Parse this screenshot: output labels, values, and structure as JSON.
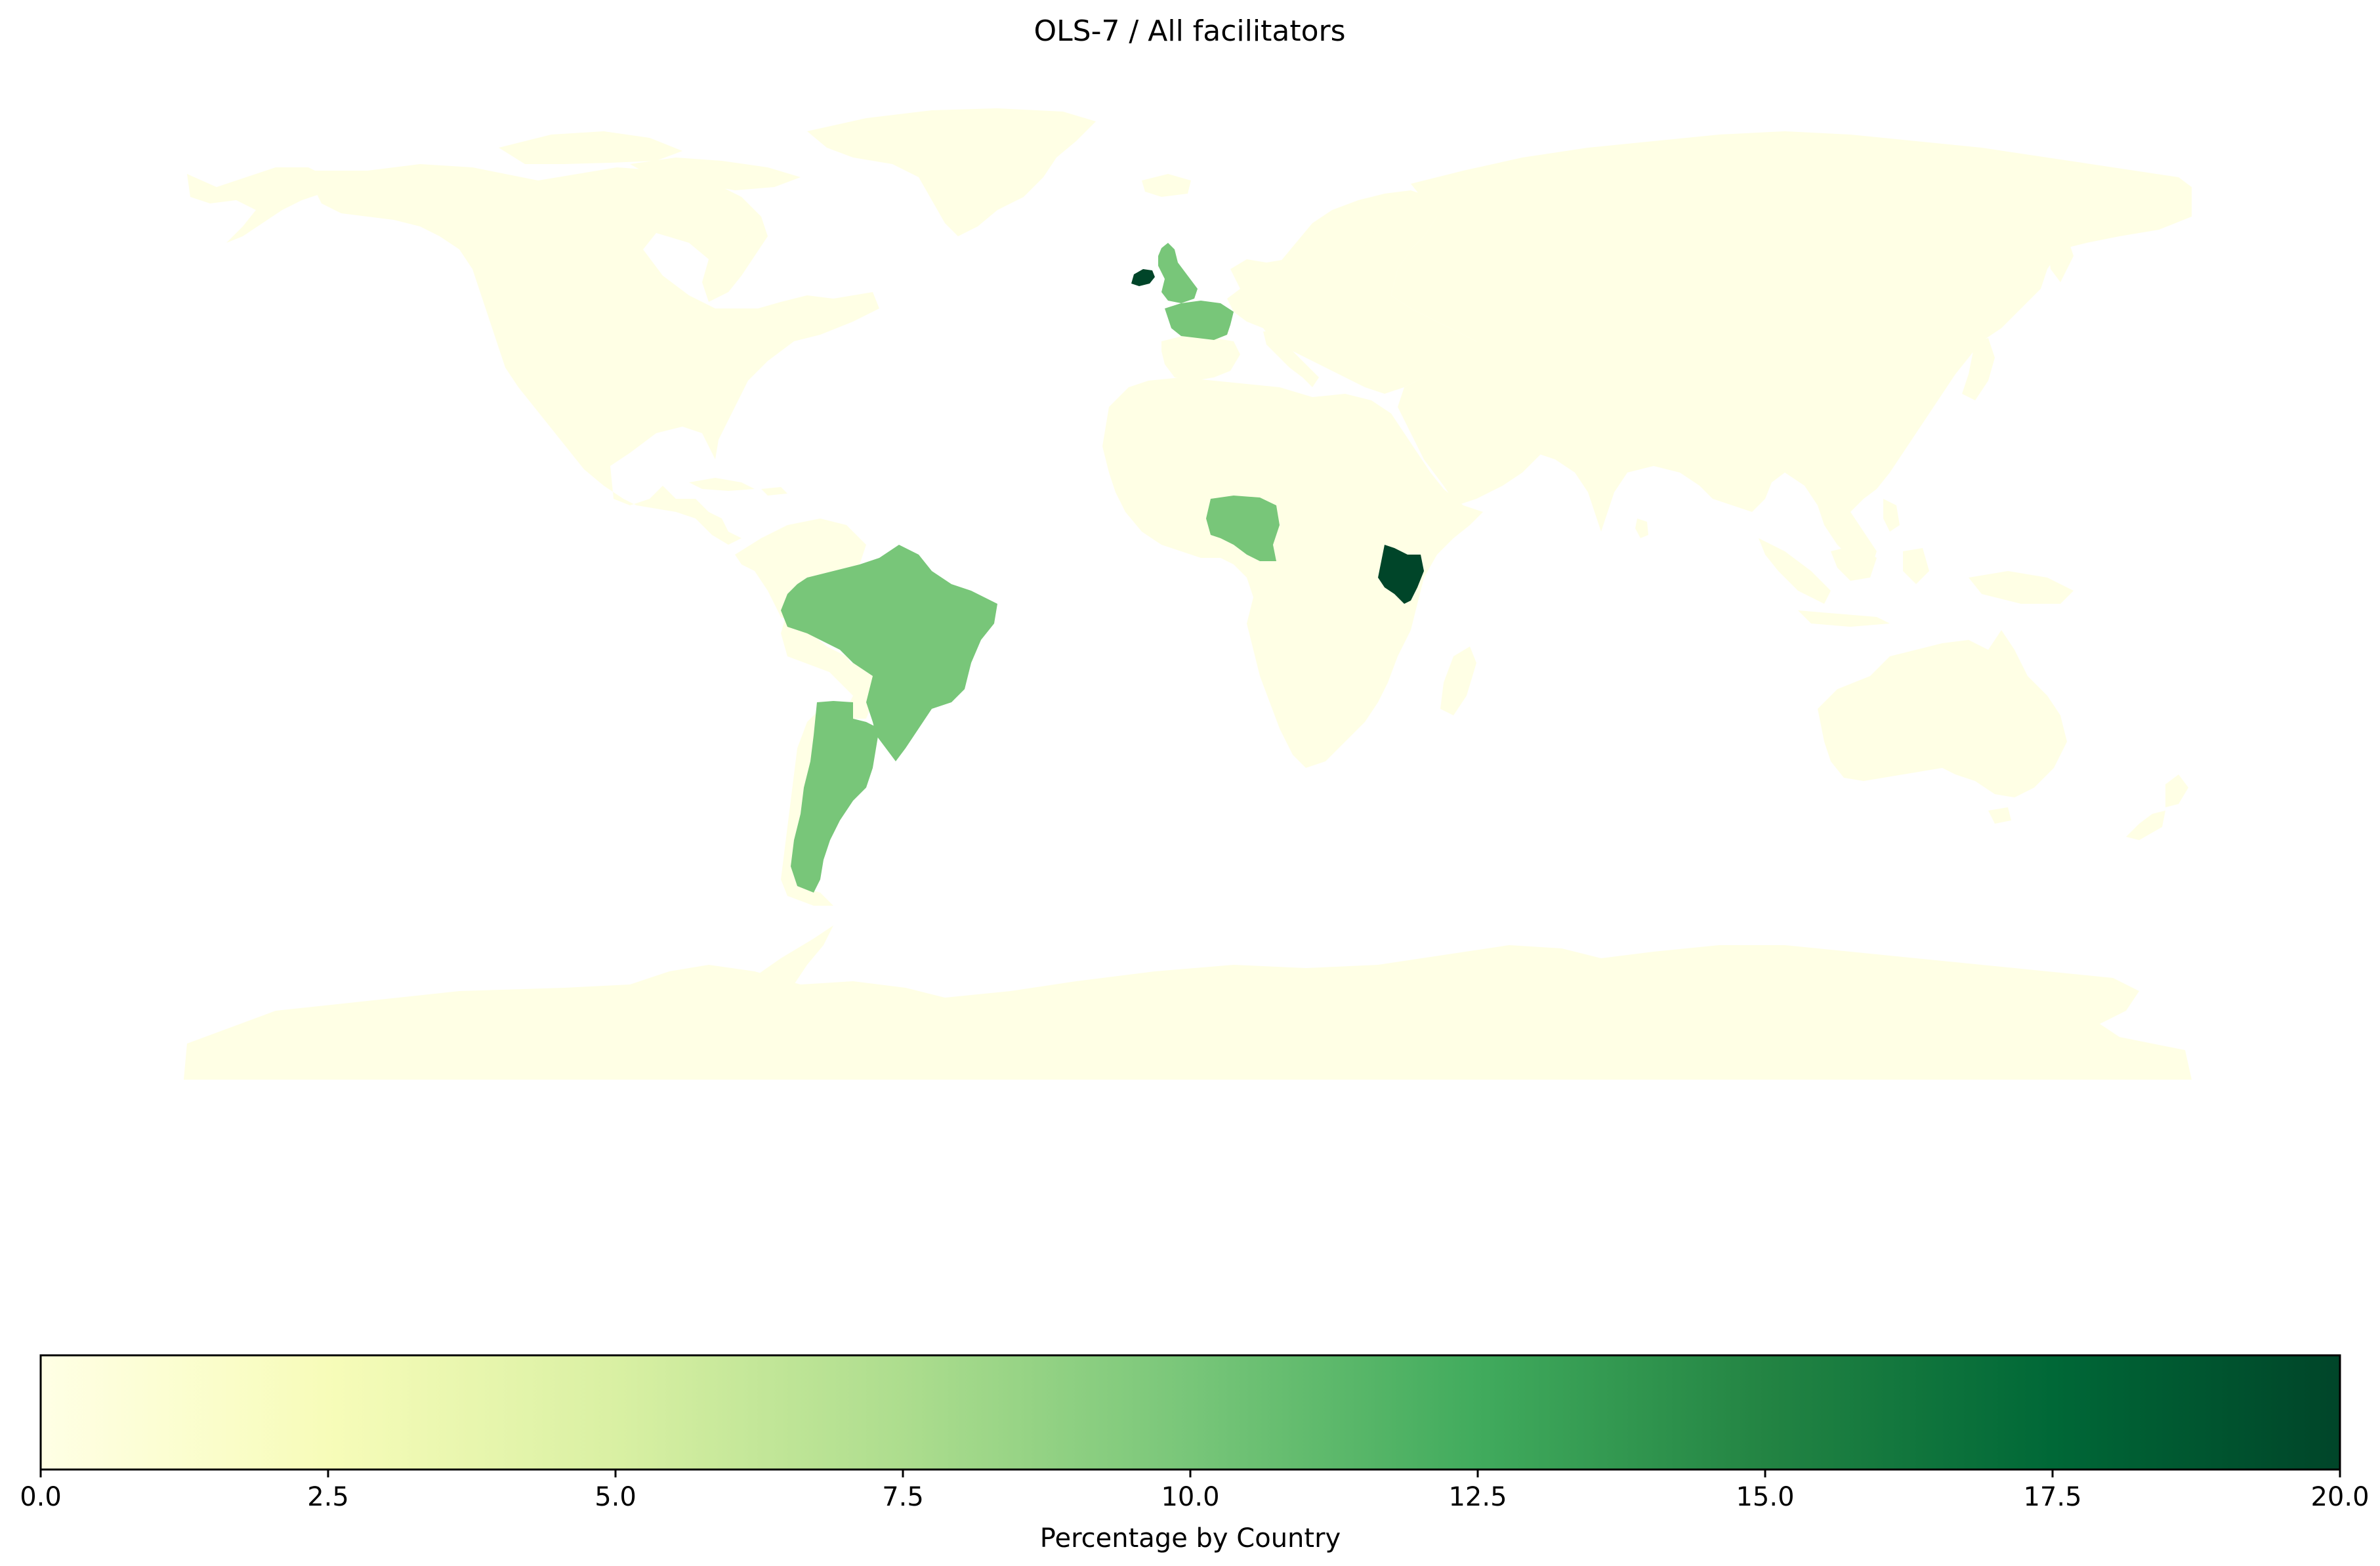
{
  "title": "OLS-7 / All facilitators",
  "colormap": "YlGn",
  "colors": {
    "zero": "#ffffe5",
    "mid": "#78c679",
    "max": "#004529",
    "background": "#ffffff",
    "stops": [
      "#ffffe5",
      "#f7fcb9",
      "#d9f0a3",
      "#addd8e",
      "#78c679",
      "#41ab5d",
      "#238443",
      "#006837",
      "#004529"
    ]
  },
  "colorbar": {
    "label": "Percentage by Country",
    "min": 0,
    "max": 20,
    "ticks": [
      "0.0",
      "2.5",
      "5.0",
      "7.5",
      "10.0",
      "12.5",
      "15.0",
      "17.5",
      "20.0"
    ]
  },
  "chart_data": {
    "type": "choropleth",
    "title": "OLS-7 / All facilitators",
    "value_label": "Percentage by Country",
    "range": [
      0,
      20
    ],
    "regions": [
      {
        "name": "Ireland",
        "value": 20
      },
      {
        "name": "Kenya",
        "value": 20
      },
      {
        "name": "United Kingdom",
        "value": 10
      },
      {
        "name": "France",
        "value": 10
      },
      {
        "name": "Nigeria",
        "value": 10
      },
      {
        "name": "Brazil",
        "value": 10
      },
      {
        "name": "Argentina",
        "value": 10
      },
      {
        "name": "Other countries",
        "value": 0
      }
    ]
  }
}
